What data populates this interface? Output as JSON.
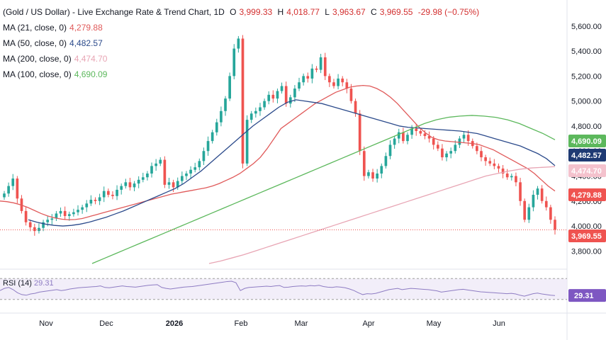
{
  "header": {
    "symbol": "(Gold / US Dollar) - Live Exchange Rate & Trend Chart, 1D",
    "open_label": "O",
    "open": "3,999.33",
    "high_label": "H",
    "high": "4,018.77",
    "low_label": "L",
    "low": "3,963.67",
    "close_label": "C",
    "close": "3,969.55",
    "change": "-29.98 (−0.75%)"
  },
  "indicators": [
    {
      "label": "MA (21, close, 0)",
      "value": "4,279.88",
      "color": "#e05a5a"
    },
    {
      "label": "MA (50, close, 0)",
      "value": "4,482.57",
      "color": "#2b4a8b"
    },
    {
      "label": "MA (200, close, 0)",
      "value": "4,474.70",
      "color": "#e8a5b4"
    },
    {
      "label": "MA (100, close, 0)",
      "value": "4,690.09",
      "color": "#5cb85c"
    }
  ],
  "rsi": {
    "label": "RSI (14)",
    "value": "29.31",
    "color": "#8e7cc3"
  },
  "colors": {
    "up": "#26a69a",
    "down": "#ef5350",
    "badge_price": "#ef5350"
  },
  "chart_data": {
    "type": "line",
    "x_ticks": [
      "Nov",
      "Dec",
      "2026",
      "Feb",
      "Mar",
      "Apr",
      "May",
      "Jun"
    ],
    "y_ticks": [
      "3,800.00",
      "4,000.00",
      "4,200.00",
      "4,400.00",
      "4,600.00",
      "4,800.00",
      "5,000.00",
      "5,200.00",
      "5,400.00",
      "5,600.00"
    ],
    "ylim": [
      3700,
      5650
    ],
    "price_series": [
      4260,
      4320,
      4380,
      4220,
      4120,
      4030,
      3990,
      3960,
      3985,
      4030,
      4050,
      4060,
      4100,
      4120,
      4080,
      4095,
      4110,
      4130,
      4150,
      4180,
      4210,
      4200,
      4230,
      4280,
      4250,
      4240,
      4290,
      4320,
      4350,
      4310,
      4340,
      4370,
      4390,
      4420,
      4480,
      4500,
      4530,
      4330,
      4350,
      4310,
      4360,
      4400,
      4420,
      4450,
      4470,
      4520,
      4600,
      4680,
      4750,
      4830,
      4920,
      5020,
      5200,
      5420,
      5500,
      4500,
      4850,
      4900,
      4920,
      4950,
      5000,
      5050,
      5020,
      5080,
      5120,
      4980,
      5030,
      5100,
      5150,
      5200,
      5180,
      5260,
      5250,
      5350,
      5200,
      5150,
      5120,
      5180,
      5150,
      5100,
      5000,
      4900,
      4600,
      4400,
      4430,
      4380,
      4420,
      4480,
      4560,
      4650,
      4700,
      4750,
      4680,
      4730,
      4780,
      4760,
      4740,
      4720,
      4700,
      4650,
      4620,
      4550,
      4580,
      4600,
      4650,
      4700,
      4730,
      4680,
      4640,
      4600,
      4550,
      4520,
      4500,
      4480,
      4460,
      4420,
      4390,
      4400,
      4350,
      4200,
      4050,
      4150,
      4250,
      4300,
      4200,
      4150,
      4050,
      3970
    ],
    "series": [
      {
        "name": "MA (21, close, 0)",
        "values": [
          4200,
          4195,
          4185,
          4170,
          4150,
          4125,
          4100,
          4080,
          4065,
          4055,
          4050,
          4052,
          4060,
          4075,
          4090,
          4105,
          4120,
          4135,
          4150,
          4165,
          4180,
          4195,
          4210,
          4225,
          4240,
          4255,
          4265,
          4275,
          4285,
          4295,
          4305,
          4320,
          4340,
          4365,
          4390,
          4420,
          4460,
          4500,
          4550,
          4620,
          4700,
          4780,
          4820,
          4860,
          4900,
          4940,
          4980,
          5010,
          5040,
          5070,
          5090,
          5110,
          5120,
          5125,
          5120,
          5100,
          5070,
          5030,
          4980,
          4920,
          4860,
          4800,
          4750,
          4710,
          4690,
          4680,
          4675,
          4670,
          4665,
          4660,
          4650,
          4630,
          4610,
          4580,
          4550,
          4520,
          4490,
          4460,
          4420,
          4370,
          4320,
          4280
        ]
      },
      {
        "name": "MA (50, close, 0)",
        "values": [
          4050,
          4030,
          4015,
          4005,
          4000,
          4005,
          4015,
          4030,
          4050,
          4070,
          4095,
          4120,
          4150,
          4180,
          4210,
          4240,
          4270,
          4300,
          4340,
          4390,
          4440,
          4500,
          4560,
          4620,
          4680,
          4740,
          4800,
          4850,
          4900,
          4950,
          4990,
          5010,
          5000,
          4990,
          4980,
          4960,
          4940,
          4920,
          4900,
          4880,
          4860,
          4840,
          4820,
          4800,
          4790,
          4785,
          4780,
          4775,
          4770,
          4765,
          4760,
          4750,
          4740,
          4720,
          4700,
          4680,
          4660,
          4640,
          4610,
          4580,
          4540,
          4483
        ]
      },
      {
        "name": "MA (200, close, 0)",
        "values": [
          3700,
          3720,
          3745,
          3770,
          3800,
          3830,
          3860,
          3890,
          3920,
          3950,
          3980,
          4010,
          4040,
          4070,
          4100,
          4130,
          4160,
          4190,
          4220,
          4250,
          4280,
          4310,
          4340,
          4370,
          4400,
          4420,
          4440,
          4455,
          4465,
          4470,
          4475
        ]
      },
      {
        "name": "MA (100, close, 0)",
        "values": [
          3700,
          3740,
          3780,
          3820,
          3860,
          3900,
          3940,
          3980,
          4020,
          4060,
          4100,
          4140,
          4180,
          4220,
          4260,
          4300,
          4340,
          4380,
          4420,
          4460,
          4500,
          4540,
          4580,
          4620,
          4660,
          4700,
          4740,
          4780,
          4820,
          4850,
          4870,
          4880,
          4885,
          4880,
          4870,
          4850,
          4820,
          4780,
          4740,
          4690
        ]
      }
    ],
    "rsi_series": [
      45,
      52,
      55,
      48,
      38,
      32,
      30,
      34,
      36,
      40,
      42,
      44,
      46,
      48,
      45,
      47,
      50,
      52,
      54,
      55,
      56,
      57,
      58,
      60,
      55,
      54,
      56,
      58,
      60,
      58,
      57,
      56,
      58,
      60,
      62,
      63,
      64,
      55,
      52,
      50,
      52,
      54,
      56,
      57,
      58,
      60,
      62,
      64,
      66,
      68,
      70,
      72,
      74,
      75,
      70,
      45,
      52,
      55,
      56,
      57,
      58,
      59,
      58,
      60,
      61,
      55,
      56,
      58,
      59,
      60,
      59,
      61,
      60,
      62,
      58,
      56,
      55,
      57,
      56,
      54,
      50,
      45,
      38,
      32,
      35,
      34,
      36,
      40,
      44,
      48,
      50,
      52,
      48,
      50,
      52,
      51,
      50,
      49,
      48,
      46,
      44,
      40,
      42,
      44,
      46,
      48,
      49,
      47,
      45,
      43,
      41,
      40,
      39,
      38,
      37,
      36,
      35,
      36,
      34,
      30,
      27,
      31,
      35,
      37,
      34,
      32,
      30,
      29
    ],
    "rsi_levels": [
      70,
      30
    ],
    "grid": false,
    "legend_position": "top-left"
  }
}
